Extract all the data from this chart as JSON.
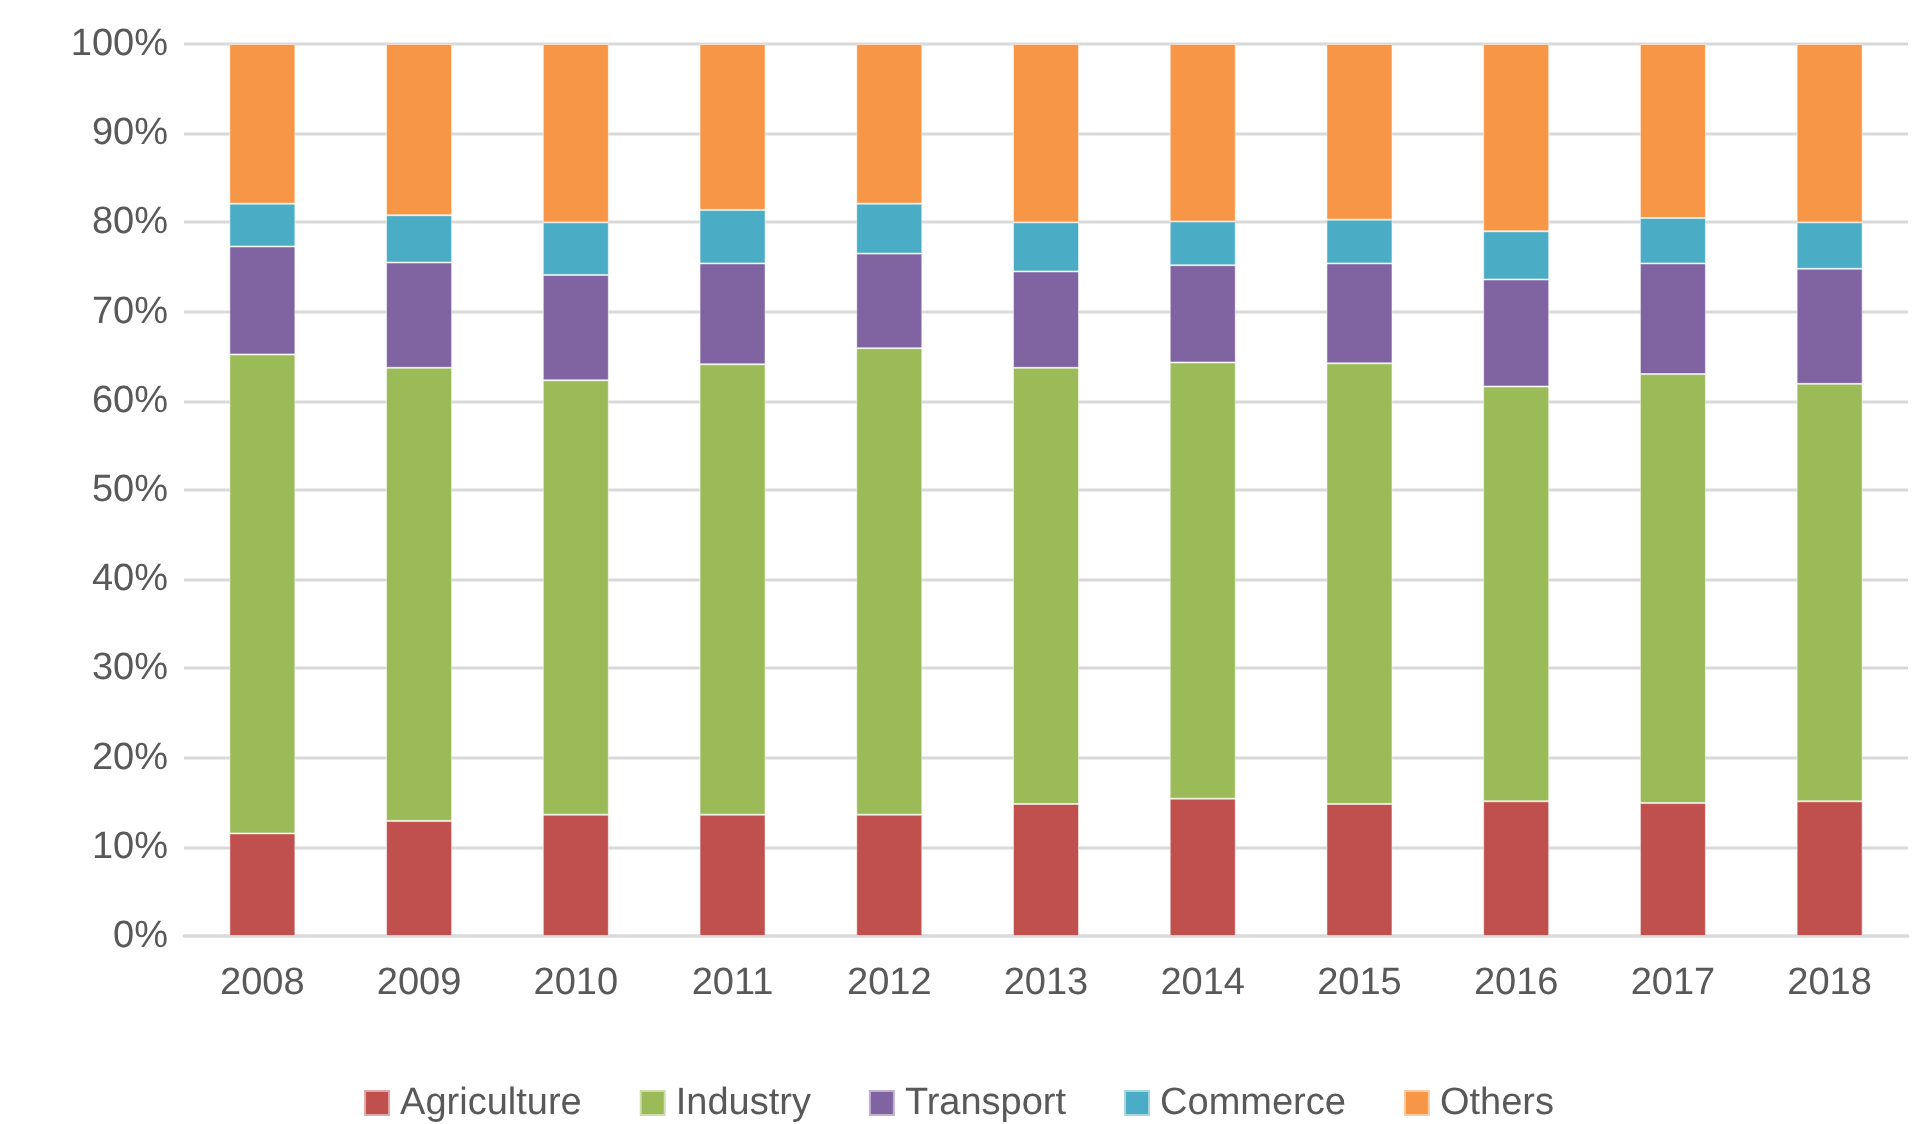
{
  "chart_data": {
    "type": "bar",
    "stacked": true,
    "categories": [
      "2008",
      "2009",
      "2010",
      "2011",
      "2012",
      "2013",
      "2014",
      "2015",
      "2016",
      "2017",
      "2018"
    ],
    "series": [
      {
        "name": "Agriculture",
        "color": "#c0504d",
        "values": [
          11.5,
          12.9,
          13.6,
          13.6,
          13.6,
          14.8,
          15.4,
          14.8,
          15.1,
          14.9,
          15.1
        ]
      },
      {
        "name": "Industry",
        "color": "#9bbb59",
        "values": [
          53.7,
          50.8,
          48.7,
          50.5,
          52.3,
          48.9,
          48.9,
          49.4,
          46.5,
          48.1,
          46.8
        ]
      },
      {
        "name": "Transport",
        "color": "#8064a2",
        "values": [
          12.1,
          11.8,
          11.8,
          11.3,
          10.6,
          10.8,
          10.9,
          11.2,
          12.0,
          12.4,
          12.9
        ]
      },
      {
        "name": "Commerce",
        "color": "#4bacc6",
        "values": [
          4.8,
          5.3,
          5.9,
          6.0,
          5.6,
          5.5,
          4.9,
          4.9,
          5.4,
          5.1,
          5.2
        ]
      },
      {
        "name": "Others",
        "color": "#f79646",
        "values": [
          17.9,
          19.2,
          20.0,
          18.6,
          17.9,
          20.0,
          19.9,
          19.7,
          21.0,
          19.5,
          20.0
        ]
      }
    ],
    "ylim": [
      0,
      100
    ],
    "yticks": [
      {
        "value": 0,
        "label": "0%"
      },
      {
        "value": 10,
        "label": "10%"
      },
      {
        "value": 20,
        "label": "20%"
      },
      {
        "value": 30,
        "label": "30%"
      },
      {
        "value": 40,
        "label": "40%"
      },
      {
        "value": 50,
        "label": "50%"
      },
      {
        "value": 60,
        "label": "60%"
      },
      {
        "value": 70,
        "label": "70%"
      },
      {
        "value": 80,
        "label": "80%"
      },
      {
        "value": 90,
        "label": "90%"
      },
      {
        "value": 100,
        "label": "100%"
      }
    ],
    "grid": "y",
    "legend": "bottom"
  }
}
